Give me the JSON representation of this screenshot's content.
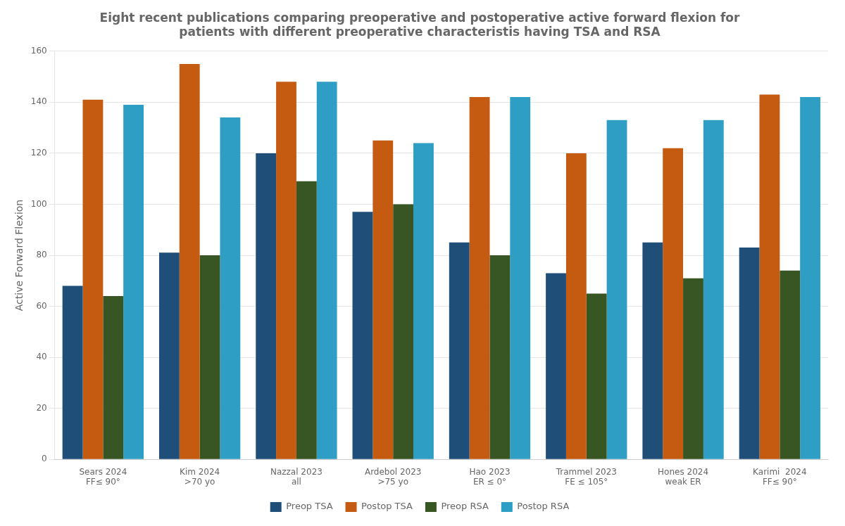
{
  "chart_data": {
    "type": "bar",
    "title": "Eight recent publications comparing preoperative and postoperative active forward flexion for\npatients with different preoperative characteristis having TSA and RSA",
    "ylabel": "Active Forward Flexion",
    "categories": [
      "Sears 2024\nFF≤ 90°",
      "Kim 2024\n>70 yo",
      "Nazzal 2023\nall",
      "Ardebol 2023\n>75 yo",
      "Hao 2023\nER ≤ 0°",
      "Trammel 2023\nFE ≤ 105°",
      "Hones 2024\nweak ER",
      "Karimi  2024\nFF≤ 90°"
    ],
    "series": [
      {
        "name": "Preop TSA",
        "color": "#1f4e79",
        "values": [
          68,
          81,
          120,
          97,
          85,
          73,
          85,
          83
        ]
      },
      {
        "name": "Postop TSA",
        "color": "#c55a11",
        "values": [
          141,
          155,
          148,
          125,
          142,
          120,
          122,
          143
        ]
      },
      {
        "name": "Preop RSA",
        "color": "#375623",
        "values": [
          64,
          80,
          109,
          100,
          80,
          65,
          71,
          74
        ]
      },
      {
        "name": "Postop RSA",
        "color": "#2e9ec4",
        "values": [
          139,
          134,
          148,
          124,
          142,
          133,
          133,
          142
        ]
      }
    ],
    "ylim": [
      0,
      160
    ],
    "yticks": [
      0,
      20,
      40,
      60,
      80,
      100,
      120,
      140,
      160
    ],
    "grid": true,
    "legend": "bottom"
  }
}
